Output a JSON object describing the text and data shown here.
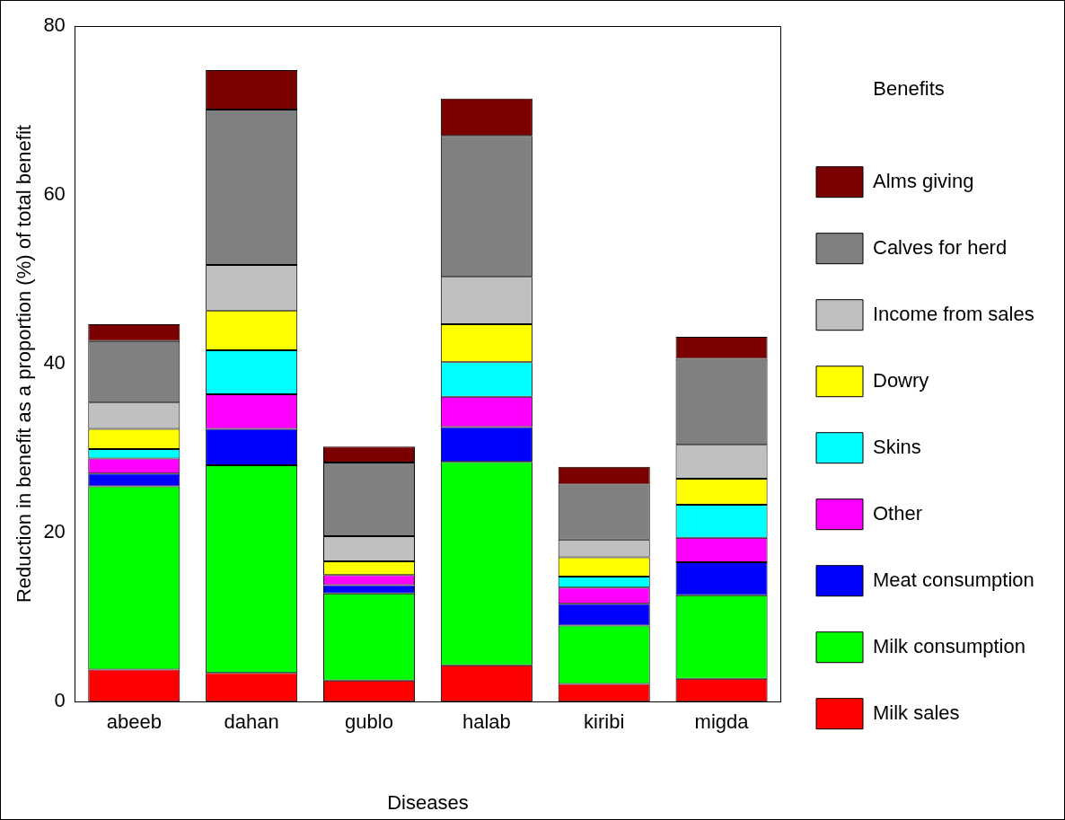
{
  "chart_data": {
    "type": "bar",
    "stacked": true,
    "xlabel": "Diseases",
    "ylabel": "Reduction in benefit as a proportion (%) of total benefit",
    "legend_title": "Benefits",
    "legend": "right",
    "categories": [
      "abeeb",
      "dahan",
      "gublo",
      "halab",
      "kiribi",
      "migda"
    ],
    "ylim": [
      0,
      80
    ],
    "yticks": [
      0,
      20,
      40,
      60,
      80
    ],
    "grid": false,
    "series": [
      {
        "name": "Milk sales",
        "color": "#ff0000",
        "values": [
          3.8,
          3.4,
          2.5,
          4.3,
          2.1,
          2.7
        ]
      },
      {
        "name": "Milk consumption",
        "color": "#00ff00",
        "values": [
          21.7,
          24.6,
          10.3,
          24.1,
          6.9,
          9.9
        ]
      },
      {
        "name": "Meat consumption",
        "color": "#0000ff",
        "values": [
          1.5,
          4.3,
          1.0,
          4.1,
          2.6,
          3.9
        ]
      },
      {
        "name": "Other",
        "color": "#ff00ff",
        "values": [
          1.8,
          4.1,
          1.2,
          3.6,
          1.9,
          2.9
        ]
      },
      {
        "name": "Skins",
        "color": "#00ffff",
        "values": [
          1.1,
          5.2,
          0,
          4.1,
          1.3,
          3.9
        ]
      },
      {
        "name": "Dowry",
        "color": "#ffff00",
        "values": [
          2.4,
          4.7,
          1.6,
          4.5,
          2.3,
          3.1
        ]
      },
      {
        "name": "Income from sales",
        "color": "#c0c0c0",
        "values": [
          3.1,
          5.4,
          3.0,
          5.6,
          2.1,
          4.0
        ]
      },
      {
        "name": "Calves for herd",
        "color": "#808080",
        "values": [
          7.3,
          18.4,
          8.7,
          16.7,
          6.5,
          10.2
        ]
      },
      {
        "name": "Alms giving",
        "color": "#7b0000",
        "values": [
          2.0,
          4.7,
          1.9,
          4.4,
          2.1,
          2.6
        ]
      }
    ]
  }
}
